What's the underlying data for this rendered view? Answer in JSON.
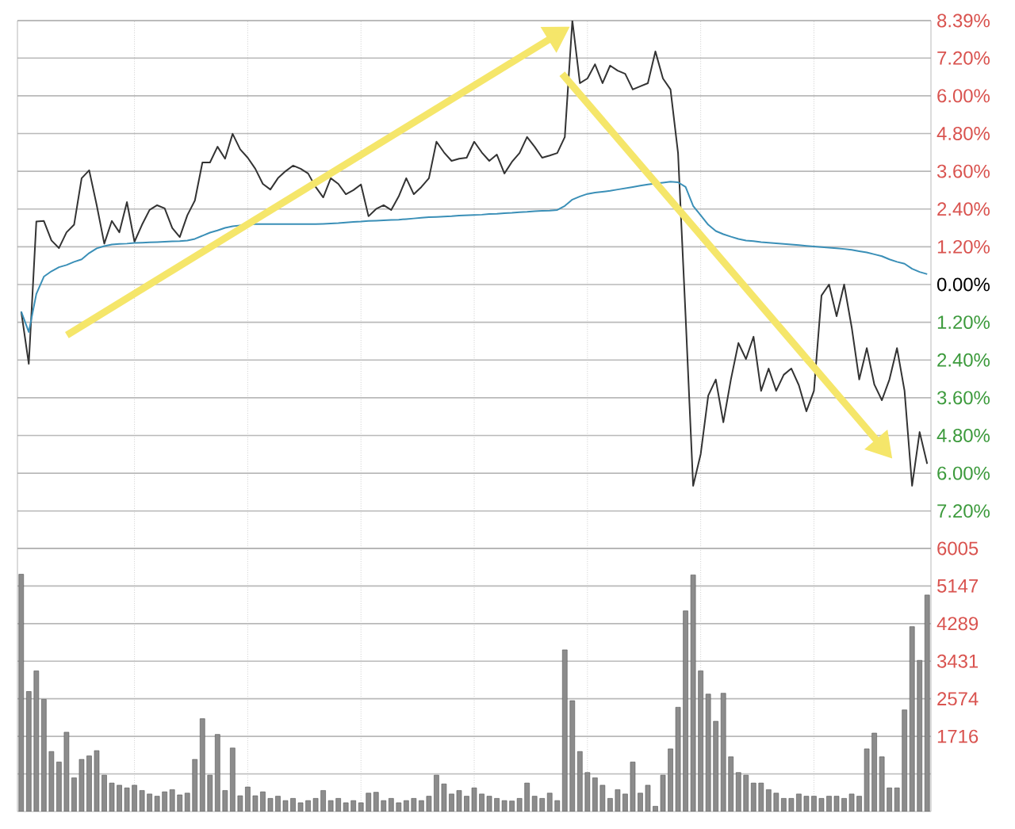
{
  "chart_data": [
    {
      "type": "line",
      "ylim": [
        -8.39,
        8.39
      ],
      "grid": true,
      "tick_labels": "y",
      "marker": "none",
      "line_style": "solid",
      "categories": [
        null,
        null,
        null,
        null,
        null,
        null,
        null,
        null,
        null,
        null,
        null,
        null,
        null,
        null,
        null,
        null,
        null,
        null,
        null,
        null,
        null,
        null,
        null,
        null,
        null,
        null,
        null,
        null,
        null,
        null,
        null,
        null,
        null,
        null,
        null,
        null,
        null,
        null,
        null,
        null,
        null,
        null,
        null,
        null,
        null,
        null,
        null,
        null,
        null,
        null,
        null,
        null,
        null,
        null,
        null,
        null,
        null,
        null,
        null,
        null,
        null,
        null,
        null,
        null,
        null,
        null,
        null,
        null,
        null,
        null,
        null,
        null,
        null,
        null,
        null,
        null,
        null,
        null,
        null,
        null,
        null,
        null,
        null,
        null,
        null,
        null,
        null,
        null,
        null,
        null,
        null,
        null,
        null,
        null,
        null,
        null,
        null,
        null,
        null,
        null,
        null,
        null,
        null,
        null,
        null,
        null,
        null,
        null,
        null,
        null,
        null,
        null,
        null,
        null,
        null,
        null,
        null,
        null,
        null,
        null,
        null
      ],
      "yticks": [
        {
          "value": 8.39,
          "label": "8.39%"
        },
        {
          "value": 7.2,
          "label": "7.20%"
        },
        {
          "value": 6.0,
          "label": "6.00%"
        },
        {
          "value": 4.8,
          "label": "4.80%"
        },
        {
          "value": 3.6,
          "label": "3.60%"
        },
        {
          "value": 2.4,
          "label": "2.40%"
        },
        {
          "value": 1.2,
          "label": "1.20%"
        },
        {
          "value": 0,
          "label": "0.00%"
        },
        {
          "value": -1.2,
          "label": "1.20%"
        },
        {
          "value": -2.4,
          "label": "2.40%"
        },
        {
          "value": -3.6,
          "label": "3.60%"
        },
        {
          "value": -4.8,
          "label": "4.80%"
        },
        {
          "value": -6.0,
          "label": "6.00%"
        },
        {
          "value": -7.2,
          "label": "7.20%"
        }
      ],
      "series": [
        {
          "color": "#333333",
          "values": [
            -0.86,
            -2.52,
            2.0,
            2.02,
            1.4,
            1.16,
            1.66,
            1.9,
            3.38,
            3.63,
            2.52,
            1.3,
            2.02,
            1.66,
            2.62,
            1.36,
            1.9,
            2.37,
            2.52,
            2.42,
            1.8,
            1.51,
            2.2,
            2.67,
            3.88,
            3.88,
            4.38,
            4.0,
            4.79,
            4.3,
            4.03,
            3.68,
            3.2,
            3.02,
            3.38,
            3.6,
            3.78,
            3.68,
            3.53,
            3.1,
            2.77,
            3.38,
            3.2,
            2.87,
            3.0,
            3.18,
            2.17,
            2.4,
            2.52,
            2.37,
            2.8,
            3.38,
            2.87,
            3.1,
            3.38,
            4.54,
            4.2,
            3.93,
            4.0,
            4.03,
            4.54,
            4.2,
            3.93,
            4.13,
            3.53,
            3.9,
            4.18,
            4.69,
            4.38,
            4.03,
            4.1,
            4.18,
            4.69,
            8.39,
            6.4,
            6.55,
            7.0,
            6.4,
            6.96,
            6.8,
            6.7,
            6.2,
            6.3,
            6.4,
            7.41,
            6.55,
            6.2,
            4.18,
            -1.01,
            -6.4,
            -5.39,
            -3.53,
            -3.02,
            -4.38,
            -3.02,
            -1.86,
            -2.37,
            -1.66,
            -3.38,
            -2.67,
            -3.38,
            -2.87,
            -2.67,
            -3.2,
            -4.03,
            -3.38,
            -0.35,
            0,
            -1.01,
            0,
            -1.36,
            -3.02,
            -2.02,
            -3.18,
            -3.68,
            -3.02,
            -2.02,
            -3.38,
            -6.4,
            -4.69,
            -5.7
          ]
        },
        {
          "color": "#3a8fb7",
          "values": [
            -0.86,
            -1.51,
            -0.3,
            0.25,
            0.42,
            0.55,
            0.62,
            0.72,
            0.8,
            1.0,
            1.15,
            1.22,
            1.27,
            1.29,
            1.3,
            1.32,
            1.33,
            1.34,
            1.35,
            1.36,
            1.37,
            1.38,
            1.4,
            1.45,
            1.55,
            1.65,
            1.72,
            1.8,
            1.85,
            1.88,
            1.9,
            1.92,
            1.92,
            1.92,
            1.92,
            1.92,
            1.92,
            1.92,
            1.92,
            1.92,
            1.93,
            1.94,
            1.95,
            1.97,
            1.99,
            2.0,
            2.02,
            2.03,
            2.04,
            2.05,
            2.06,
            2.08,
            2.1,
            2.12,
            2.14,
            2.15,
            2.16,
            2.17,
            2.19,
            2.2,
            2.21,
            2.22,
            2.24,
            2.25,
            2.27,
            2.28,
            2.3,
            2.31,
            2.33,
            2.34,
            2.35,
            2.37,
            2.5,
            2.7,
            2.8,
            2.88,
            2.92,
            2.95,
            2.98,
            3.02,
            3.06,
            3.1,
            3.14,
            3.18,
            3.21,
            3.24,
            3.27,
            3.25,
            3.1,
            2.5,
            2.2,
            1.9,
            1.7,
            1.6,
            1.52,
            1.45,
            1.4,
            1.38,
            1.35,
            1.33,
            1.31,
            1.29,
            1.27,
            1.25,
            1.23,
            1.21,
            1.19,
            1.17,
            1.15,
            1.13,
            1.1,
            1.06,
            1.02,
            0.96,
            0.9,
            0.8,
            0.72,
            0.66,
            0.5,
            0.4,
            0.33
          ]
        }
      ]
    },
    {
      "type": "bar",
      "ylim": [
        0,
        6005
      ],
      "grid": true,
      "tick_labels": "y",
      "color": "#8c8c8c",
      "categories": [
        null,
        null,
        null,
        null,
        null,
        null,
        null,
        null,
        null,
        null,
        null,
        null,
        null,
        null,
        null,
        null,
        null,
        null,
        null,
        null,
        null,
        null,
        null,
        null,
        null,
        null,
        null,
        null,
        null,
        null,
        null,
        null,
        null,
        null,
        null,
        null,
        null,
        null,
        null,
        null,
        null,
        null,
        null,
        null,
        null,
        null,
        null,
        null,
        null,
        null,
        null,
        null,
        null,
        null,
        null,
        null,
        null,
        null,
        null,
        null,
        null,
        null,
        null,
        null,
        null,
        null,
        null,
        null,
        null,
        null,
        null,
        null,
        null,
        null,
        null,
        null,
        null,
        null,
        null,
        null,
        null,
        null,
        null,
        null,
        null,
        null,
        null,
        null,
        null,
        null,
        null,
        null,
        null,
        null,
        null,
        null,
        null,
        null,
        null,
        null,
        null,
        null,
        null,
        null,
        null,
        null,
        null,
        null,
        null,
        null,
        null,
        null,
        null,
        null,
        null,
        null,
        null,
        null,
        null,
        null,
        null
      ],
      "yticks": [
        {
          "value": 858,
          "label": null
        },
        1716,
        2574,
        3431,
        4289,
        5147,
        6005
      ],
      "values": [
        5415,
        2740,
        3210,
        2560,
        1370,
        1130,
        1810,
        770,
        1190,
        1270,
        1390,
        830,
        650,
        600,
        540,
        600,
        480,
        400,
        350,
        450,
        500,
        380,
        420,
        1190,
        2120,
        830,
        1760,
        480,
        1450,
        360,
        560,
        360,
        450,
        300,
        350,
        250,
        300,
        200,
        250,
        300,
        480,
        250,
        300,
        200,
        250,
        200,
        420,
        440,
        250,
        300,
        200,
        250,
        300,
        250,
        350,
        830,
        630,
        400,
        480,
        350,
        540,
        400,
        350,
        300,
        250,
        240,
        300,
        650,
        350,
        300,
        420,
        250,
        3690,
        2530,
        1370,
        890,
        770,
        600,
        300,
        500,
        400,
        1130,
        420,
        600,
        120,
        830,
        1430,
        2380,
        4580,
        5400,
        3210,
        2680,
        2060,
        2700,
        1250,
        890,
        830,
        650,
        650,
        500,
        420,
        300,
        300,
        400,
        350,
        350,
        300,
        350,
        350,
        300,
        400,
        350,
        1430,
        1790,
        1250,
        540,
        540,
        2320,
        4220,
        3450,
        4940
      ]
    }
  ]
}
